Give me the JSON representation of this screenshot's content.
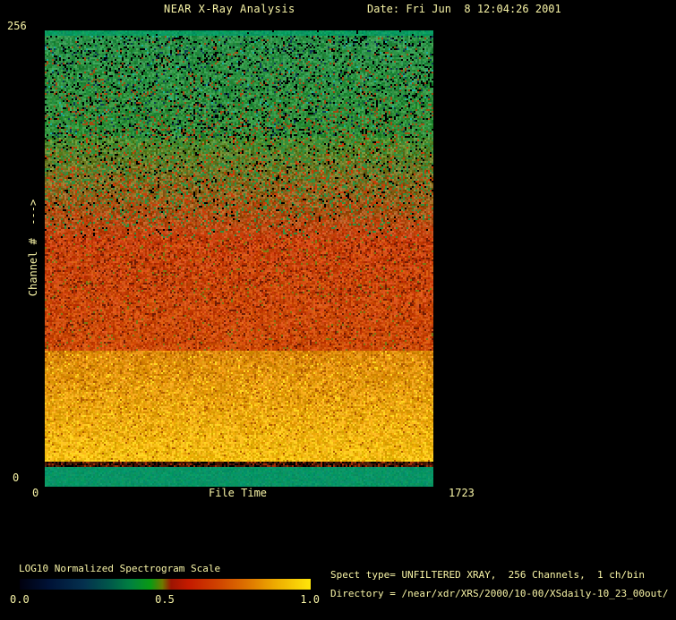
{
  "window": {
    "background": "#000000",
    "text_color": "#f8f4a6"
  },
  "header": {
    "title": "NEAR X-Ray Analysis",
    "date_label": "Date: Fri Jun  8 12:04:26 2001"
  },
  "plot": {
    "y_axis": {
      "label": "Channel #  --->",
      "top_tick": "256",
      "bottom_tick": "0"
    },
    "x_axis": {
      "label": "File Time",
      "left_tick": "0",
      "right_tick": "1723"
    }
  },
  "colorbar": {
    "title": "LOG10 Normalized Spectrogram Scale",
    "ticks": [
      "0.0",
      "0.5",
      "1.0"
    ]
  },
  "info": {
    "spect_line": "Spect type= UNFILTERED XRAY,  256 Channels,  1 ch/bin",
    "directory_line": "Directory = /near/xdr/XRS/2000/10-00/XSdaily-10_23_00out/"
  },
  "chart_data": {
    "type": "heatmap",
    "title": "NEAR X-Ray Analysis",
    "xlabel": "File Time",
    "ylabel": "Channel #",
    "xlim": [
      0,
      1723
    ],
    "ylim": [
      0,
      256
    ],
    "colorbar_label": "LOG10 Normalized Spectrogram Scale",
    "colorbar_ticks": [
      0.0,
      0.5,
      1.0
    ],
    "scale_gradient": [
      {
        "at": 0.0,
        "color": "#00000e"
      },
      {
        "at": 0.1,
        "color": "#001236"
      },
      {
        "at": 0.22,
        "color": "#04304e"
      },
      {
        "at": 0.31,
        "color": "#00584a"
      },
      {
        "at": 0.38,
        "color": "#008040"
      },
      {
        "at": 0.45,
        "color": "#0a9a12"
      },
      {
        "at": 0.49,
        "color": "#6d7a00"
      },
      {
        "at": 0.52,
        "color": "#9c1402"
      },
      {
        "at": 0.58,
        "color": "#c41a00"
      },
      {
        "at": 0.68,
        "color": "#cf4200"
      },
      {
        "at": 0.78,
        "color": "#dd7200"
      },
      {
        "at": 0.88,
        "color": "#eeac00"
      },
      {
        "at": 1.0,
        "color": "#ffe60a"
      }
    ],
    "bands": [
      {
        "description": "top edge solid green strip",
        "ch_from": 253,
        "ch_to": 256,
        "top": "#0a9a60",
        "bottom": "#0a9a60",
        "jitter": 8,
        "speckles": [
          {
            "color": "#000000",
            "p_top": 0.02,
            "p_bottom": 0.02
          }
        ]
      },
      {
        "description": "high channels: low-intensity green noise",
        "ch_from": 196,
        "ch_to": 253,
        "top": "#2a9148",
        "bottom": "#30903a",
        "jitter": 26,
        "speckles": [
          {
            "color": "#000000",
            "p_top": 0.13,
            "p_bottom": 0.1
          },
          {
            "color": "#0e3c55",
            "p_top": 0.05,
            "p_bottom": 0.03
          },
          {
            "color": "#17b39f",
            "p_top": 0.02,
            "p_bottom": 0.01
          },
          {
            "color": "#a34b12",
            "p_top": 0.02,
            "p_bottom": 0.15
          }
        ]
      },
      {
        "description": "gradual green-to-red transition",
        "ch_from": 140,
        "ch_to": 196,
        "top": "#4f8d2c",
        "bottom": "#c24410",
        "jitter": 30,
        "speckles": [
          {
            "color": "#000000",
            "p_top": 0.08,
            "p_bottom": 0.03
          },
          {
            "color": "#2f9040",
            "p_top": 0.28,
            "p_bottom": 0.05
          },
          {
            "color": "#cc3c08",
            "p_top": 0.08,
            "p_bottom": 0.22
          }
        ]
      },
      {
        "description": "mid channels: red high intensity",
        "ch_from": 76,
        "ch_to": 140,
        "top": "#c7400b",
        "bottom": "#cc4a06",
        "jitter": 26,
        "speckles": [
          {
            "color": "#701c04",
            "p_top": 0.1,
            "p_bottom": 0.06
          },
          {
            "color": "#7a7a14",
            "p_top": 0.05,
            "p_bottom": 0.03
          },
          {
            "color": "#e06010",
            "p_top": 0.06,
            "p_bottom": 0.1
          }
        ]
      },
      {
        "description": "low channels: bright orange-gold band",
        "ch_from": 14,
        "ch_to": 76,
        "top": "#dd8b0a",
        "bottom": "#f2bb10",
        "jitter": 26,
        "speckles": [
          {
            "color": "#b05c04",
            "p_top": 0.08,
            "p_bottom": 0.02
          },
          {
            "color": "#ffd820",
            "p_top": 0.03,
            "p_bottom": 0.12
          }
        ]
      },
      {
        "description": "dark speckled separator line",
        "ch_from": 11,
        "ch_to": 14,
        "top": "#4a1602",
        "bottom": "#4a1602",
        "jitter": 18,
        "speckles": [
          {
            "color": "#000000",
            "p_top": 0.3,
            "p_bottom": 0.3
          },
          {
            "color": "#a03008",
            "p_top": 0.2,
            "p_bottom": 0.2
          }
        ]
      },
      {
        "description": "bottom solid teal strip",
        "ch_from": 0,
        "ch_to": 11,
        "top": "#089465",
        "bottom": "#089465",
        "jitter": 4,
        "speckles": []
      }
    ]
  }
}
